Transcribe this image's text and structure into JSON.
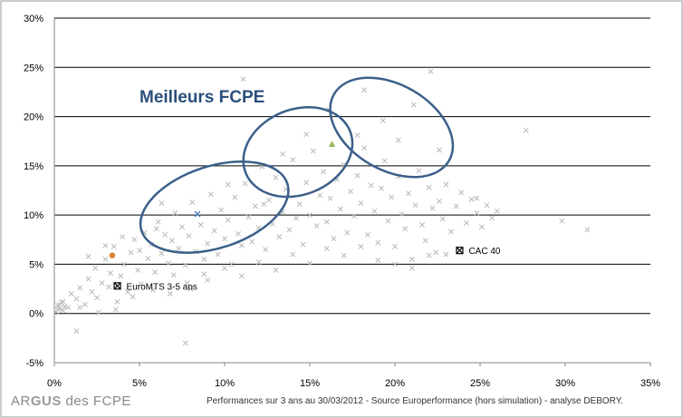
{
  "chart_data": {
    "type": "scatter",
    "title": "",
    "xlabel": "",
    "ylabel": "",
    "xlim": [
      0,
      35
    ],
    "ylim": [
      -5,
      30
    ],
    "x_ticks": [
      "0%",
      "5%",
      "10%",
      "15%",
      "20%",
      "25%",
      "30%",
      "35%"
    ],
    "y_ticks": [
      "-5%",
      "0%",
      "5%",
      "10%",
      "15%",
      "20%",
      "25%",
      "30%"
    ],
    "grid": "horizontal",
    "annotation": "Meilleurs FCPE",
    "benchmarks": [
      {
        "label": "CAC 40",
        "x": 23.8,
        "y": 6.4
      },
      {
        "label": "EuroMTS 3-5 ans",
        "x": 3.7,
        "y": 2.8
      }
    ],
    "highlights": [
      {
        "x": 3.4,
        "y": 5.9,
        "color": "#d9822b",
        "shape": "circle"
      },
      {
        "x": 16.3,
        "y": 17.2,
        "color": "#9bbb59",
        "shape": "triangle"
      },
      {
        "x": 8.4,
        "y": 10.1,
        "color": "#4f81bd",
        "shape": "cross"
      }
    ],
    "ellipses": [
      {
        "cx": 9.4,
        "cy": 10.8,
        "rx": 4.5,
        "ry": 2.4,
        "angle": -18
      },
      {
        "cx": 14.3,
        "cy": 16.4,
        "rx": 3.3,
        "ry": 2.5,
        "angle": -22
      },
      {
        "cx": 19.8,
        "cy": 18.9,
        "rx": 3.9,
        "ry": 2.5,
        "angle": 30
      }
    ],
    "series": [
      {
        "marker": "x",
        "color": "#b8b8b8",
        "points": [
          [
            0.1,
            0.2
          ],
          [
            0.2,
            0.8
          ],
          [
            0.3,
            0.5
          ],
          [
            0.4,
            1.1
          ],
          [
            0.5,
            0.3
          ],
          [
            0.3,
            0.9
          ],
          [
            0.6,
            0.7
          ],
          [
            0.2,
            0.4
          ],
          [
            0.5,
            1.2
          ],
          [
            0.8,
            0.6
          ],
          [
            1.0,
            2.0
          ],
          [
            1.3,
            1.5
          ],
          [
            1.5,
            2.6
          ],
          [
            1.8,
            0.9
          ],
          [
            2.0,
            3.5
          ],
          [
            2.2,
            2.2
          ],
          [
            2.4,
            4.6
          ],
          [
            2.5,
            1.6
          ],
          [
            2.8,
            3.1
          ],
          [
            3.0,
            5.5
          ],
          [
            3.2,
            2.7
          ],
          [
            3.3,
            4.1
          ],
          [
            3.5,
            6.8
          ],
          [
            3.7,
            1.2
          ],
          [
            3.9,
            3.8
          ],
          [
            4.1,
            5.0
          ],
          [
            4.3,
            2.2
          ],
          [
            4.5,
            6.2
          ],
          [
            4.7,
            7.5
          ],
          [
            4.9,
            4.4
          ],
          [
            5.1,
            3.0
          ],
          [
            5.3,
            8.2
          ],
          [
            5.5,
            5.6
          ],
          [
            5.7,
            7.0
          ],
          [
            5.9,
            4.2
          ],
          [
            6.1,
            9.3
          ],
          [
            6.3,
            6.1
          ],
          [
            6.5,
            8.0
          ],
          [
            6.7,
            5.1
          ],
          [
            6.9,
            7.4
          ],
          [
            7.1,
            10.2
          ],
          [
            7.3,
            6.6
          ],
          [
            7.5,
            8.8
          ],
          [
            7.7,
            4.9
          ],
          [
            7.9,
            7.9
          ],
          [
            8.1,
            11.3
          ],
          [
            8.3,
            6.3
          ],
          [
            8.6,
            9.0
          ],
          [
            8.8,
            5.5
          ],
          [
            9.0,
            7.1
          ],
          [
            9.2,
            12.1
          ],
          [
            9.4,
            8.4
          ],
          [
            9.6,
            6.0
          ],
          [
            9.8,
            10.5
          ],
          [
            10.0,
            7.6
          ],
          [
            10.2,
            9.5
          ],
          [
            10.4,
            5.0
          ],
          [
            10.6,
            11.8
          ],
          [
            10.8,
            8.1
          ],
          [
            11.0,
            6.9
          ],
          [
            11.2,
            13.2
          ],
          [
            11.4,
            9.8
          ],
          [
            11.6,
            7.3
          ],
          [
            11.8,
            10.9
          ],
          [
            12.0,
            8.7
          ],
          [
            12.2,
            14.9
          ],
          [
            12.4,
            6.5
          ],
          [
            12.6,
            11.5
          ],
          [
            12.8,
            9.1
          ],
          [
            13.0,
            13.8
          ],
          [
            13.2,
            7.8
          ],
          [
            13.4,
            10.3
          ],
          [
            13.6,
            12.6
          ],
          [
            13.8,
            8.5
          ],
          [
            14.0,
            15.6
          ],
          [
            14.2,
            9.7
          ],
          [
            14.4,
            11.1
          ],
          [
            14.6,
            7.0
          ],
          [
            14.8,
            13.3
          ],
          [
            15.0,
            10.0
          ],
          [
            15.2,
            16.5
          ],
          [
            15.4,
            8.9
          ],
          [
            15.6,
            12.0
          ],
          [
            15.8,
            14.4
          ],
          [
            16.0,
            9.3
          ],
          [
            16.2,
            11.7
          ],
          [
            16.4,
            7.6
          ],
          [
            16.6,
            13.6
          ],
          [
            16.8,
            10.6
          ],
          [
            17.0,
            15.1
          ],
          [
            17.2,
            8.2
          ],
          [
            17.4,
            12.4
          ],
          [
            17.6,
            9.9
          ],
          [
            17.8,
            14.0
          ],
          [
            18.0,
            11.2
          ],
          [
            18.2,
            16.8
          ],
          [
            18.4,
            8.0
          ],
          [
            18.6,
            13.0
          ],
          [
            18.8,
            10.4
          ],
          [
            19.0,
            7.2
          ],
          [
            19.2,
            12.7
          ],
          [
            19.4,
            15.5
          ],
          [
            19.6,
            9.4
          ],
          [
            19.8,
            11.8
          ],
          [
            20.0,
            6.8
          ],
          [
            20.2,
            13.9
          ],
          [
            20.4,
            10.1
          ],
          [
            20.6,
            8.6
          ],
          [
            20.8,
            12.2
          ],
          [
            21.0,
            5.5
          ],
          [
            21.2,
            11.0
          ],
          [
            21.4,
            14.5
          ],
          [
            21.6,
            9.0
          ],
          [
            21.8,
            7.4
          ],
          [
            22.0,
            12.8
          ],
          [
            22.2,
            10.7
          ],
          [
            22.4,
            6.2
          ],
          [
            22.6,
            11.4
          ],
          [
            22.8,
            9.6
          ],
          [
            23.0,
            13.1
          ],
          [
            23.3,
            8.3
          ],
          [
            23.6,
            10.9
          ],
          [
            23.9,
            12.3
          ],
          [
            24.2,
            9.2
          ],
          [
            24.5,
            11.6
          ],
          [
            24.8,
            10.2
          ],
          [
            25.1,
            8.8
          ],
          [
            25.4,
            11.0
          ],
          [
            25.7,
            9.7
          ],
          [
            26.0,
            10.4
          ],
          [
            2.0,
            5.8
          ],
          [
            3.0,
            6.9
          ],
          [
            4.0,
            7.8
          ],
          [
            5.0,
            6.4
          ],
          [
            6.0,
            8.6
          ],
          [
            7.0,
            3.9
          ],
          [
            8.0,
            2.5
          ],
          [
            9.0,
            3.4
          ],
          [
            10.0,
            4.6
          ],
          [
            11.0,
            3.8
          ],
          [
            12.0,
            5.2
          ],
          [
            13.0,
            4.4
          ],
          [
            14.0,
            6.0
          ],
          [
            15.0,
            5.1
          ],
          [
            16.0,
            6.6
          ],
          [
            17.0,
            5.9
          ],
          [
            18.0,
            6.8
          ],
          [
            19.0,
            5.4
          ],
          [
            20.0,
            5.0
          ],
          [
            21.0,
            4.6
          ],
          [
            22.0,
            5.9
          ],
          [
            23.0,
            6.0
          ],
          [
            1.5,
            0.6
          ],
          [
            2.6,
            0.1
          ],
          [
            3.6,
            0.4
          ],
          [
            4.6,
            1.7
          ],
          [
            5.8,
            2.4
          ],
          [
            6.8,
            2.0
          ],
          [
            7.8,
            3.1
          ],
          [
            8.8,
            4.0
          ],
          [
            11.1,
            23.8
          ],
          [
            22.1,
            24.6
          ],
          [
            18.2,
            22.7
          ],
          [
            16.1,
            20.7
          ],
          [
            21.1,
            21.2
          ],
          [
            27.7,
            18.6
          ],
          [
            20.2,
            17.6
          ],
          [
            14.8,
            18.2
          ],
          [
            22.6,
            16.6
          ],
          [
            19.3,
            19.6
          ],
          [
            29.8,
            9.4
          ],
          [
            31.3,
            8.5
          ],
          [
            1.3,
            -1.8
          ],
          [
            7.7,
            -3.0
          ],
          [
            12.3,
            11.1
          ],
          [
            13.4,
            16.2
          ],
          [
            10.2,
            13.1
          ],
          [
            6.3,
            11.2
          ],
          [
            17.8,
            18.1
          ],
          [
            24.8,
            11.7
          ]
        ]
      }
    ]
  },
  "footer": {
    "logo_prefix": "AR",
    "logo_accent": "GUS",
    "logo_suffix": " des FCPE",
    "source_text": "Performances sur 3 ans au     30/03/2012  - Source Europerformance (hors simulation) - analyse DEBORY."
  }
}
